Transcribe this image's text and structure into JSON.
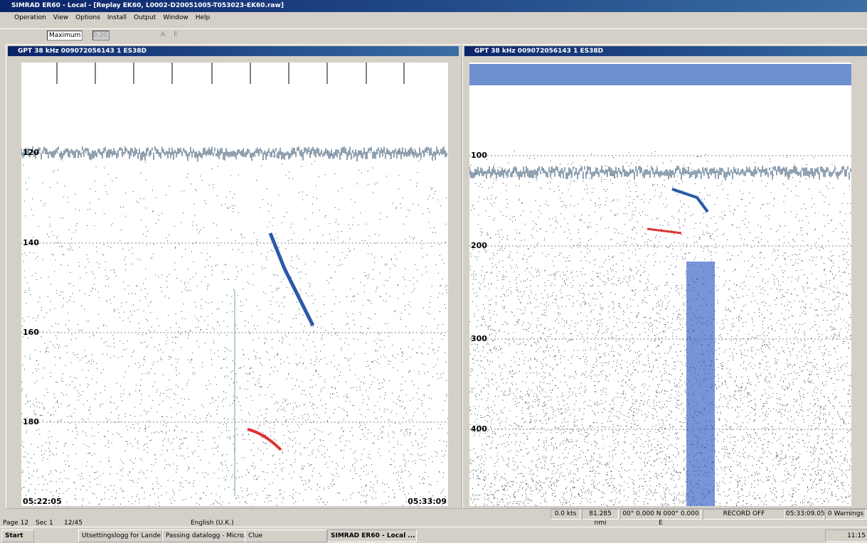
{
  "app": {
    "title": "SIMRAD ER60 - Local - [Replay EK60, L0002-D20051005-T053023-EK60.raw]",
    "menu": [
      "Operation",
      "View",
      "Options",
      "Install",
      "Output",
      "Window",
      "Help"
    ],
    "toolbar": {
      "mode": "Maximum",
      "value": "0.20",
      "buttons": [
        "A",
        "E"
      ]
    },
    "left_window": {
      "title": "GPT  38 kHz 009072056143 1 ES38D",
      "depth_labels": [
        "120",
        "140",
        "160",
        "180"
      ],
      "start_time": "05:22:05",
      "end_time": "05:33:09"
    },
    "right_window": {
      "title": "GPT  38 kHz 009072056143 1 ES38D",
      "depth_labels": [
        "100",
        "200",
        "300",
        "400"
      ]
    },
    "status_bar": [
      "0.0 kts",
      "81.285 nmi",
      "00° 0.000 N  000° 0.000 E",
      "RECORD OFF",
      "05:33:09.05",
      "0 Warnings"
    ],
    "word_status": [
      "Page 12",
      "Sec 1",
      "12/45",
      "English (U.K.)"
    ]
  },
  "taskbar": {
    "start": "Start",
    "tasks": [
      "Utsettingslogg for Lande...",
      "Passing datalogg - Micro...",
      "Clue",
      "SIMRAD ER60 - Local ..."
    ],
    "clock": "11:15"
  }
}
